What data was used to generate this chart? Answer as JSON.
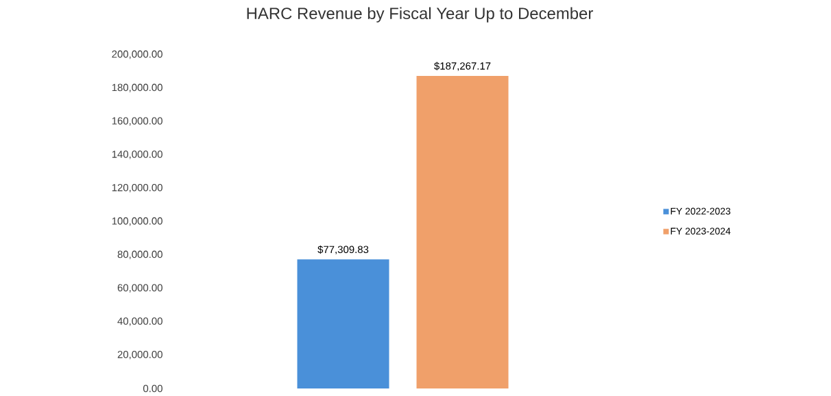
{
  "chart_data": {
    "type": "bar",
    "title": "HARC Revenue by Fiscal Year Up to December",
    "categories": [
      null
    ],
    "series": [
      {
        "name": "FY 2022-2023",
        "color": "#4a90d9",
        "values": [
          77309.83
        ],
        "value_labels": [
          "$77,309.83"
        ]
      },
      {
        "name": "FY 2023-2024",
        "color": "#f0a06a",
        "values": [
          187267.17
        ],
        "value_labels": [
          "$187,267.17"
        ]
      }
    ],
    "ylim": [
      0,
      200000
    ],
    "yticks": [
      {
        "value": 0,
        "label": "0.00"
      },
      {
        "value": 20000,
        "label": "20,000.00"
      },
      {
        "value": 40000,
        "label": "40,000.00"
      },
      {
        "value": 60000,
        "label": "60,000.00"
      },
      {
        "value": 80000,
        "label": "80,000.00"
      },
      {
        "value": 100000,
        "label": "100,000.00"
      },
      {
        "value": 120000,
        "label": "120,000.00"
      },
      {
        "value": 140000,
        "label": "140,000.00"
      },
      {
        "value": 160000,
        "label": "160,000.00"
      },
      {
        "value": 180000,
        "label": "180,000.00"
      },
      {
        "value": 200000,
        "label": "200,000.00"
      }
    ],
    "legend": "right"
  }
}
